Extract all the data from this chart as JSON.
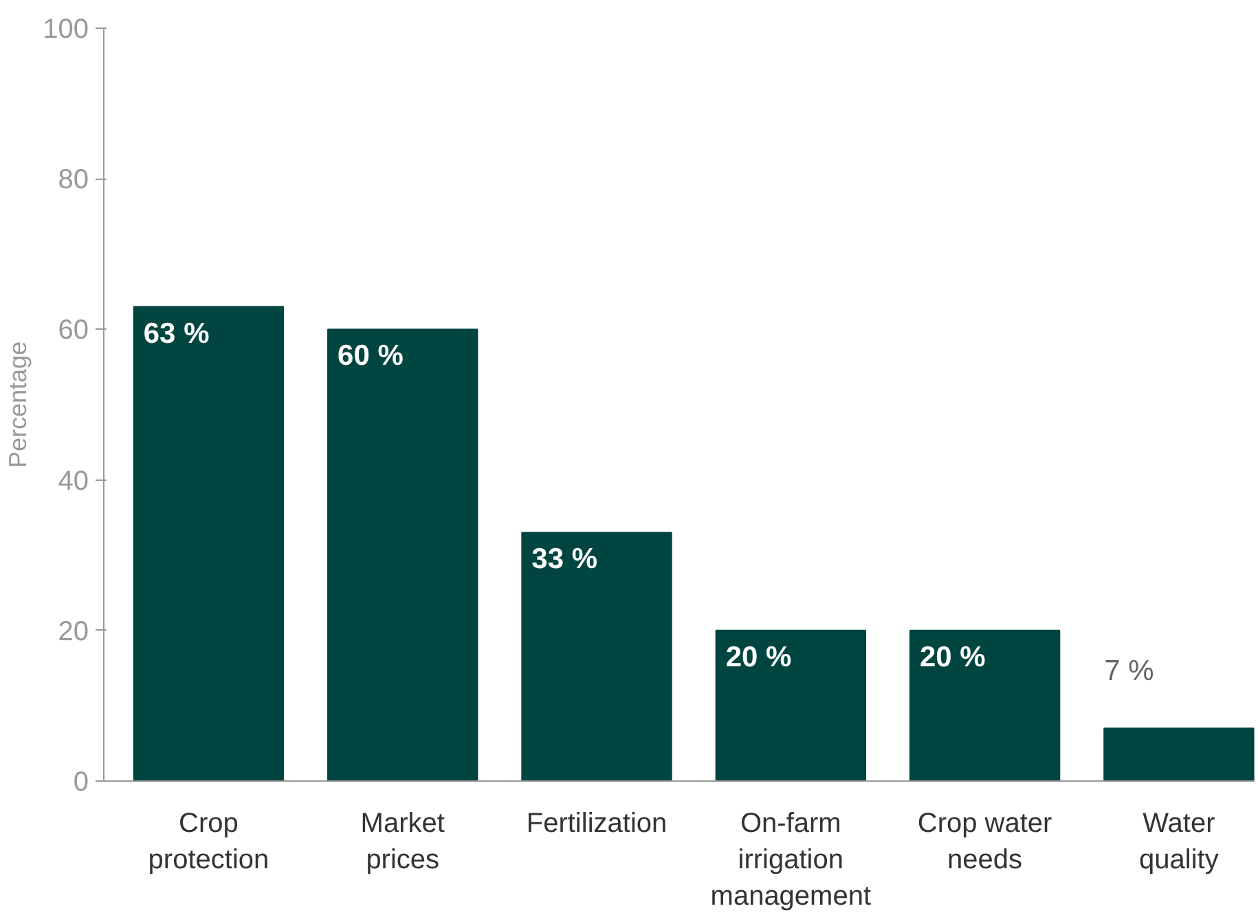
{
  "chart_data": {
    "type": "bar",
    "ylabel": "Percentage",
    "categories": [
      "Crop\nprotection",
      "Market\nprices",
      "Fertilization",
      "On-farm\nirrigation\nmanagement",
      "Crop water\nneeds",
      "Water\nquality"
    ],
    "values": [
      63,
      60,
      33,
      20,
      20,
      7
    ],
    "value_labels": [
      "63 %",
      "60 %",
      "33 %",
      "20 %",
      "20 %",
      "7 %"
    ],
    "color": "#004540",
    "ylim": [
      0,
      100
    ],
    "yticks": [
      0,
      20,
      40,
      60,
      80,
      100
    ],
    "grid": false
  }
}
